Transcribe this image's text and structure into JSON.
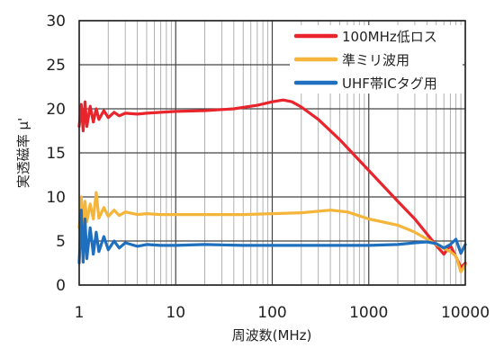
{
  "chart_data": {
    "type": "line",
    "title": "",
    "xlabel": "周波数(MHz)",
    "ylabel": "実透磁率 μ'",
    "xscale": "log",
    "xlim": [
      1,
      10000
    ],
    "ylim": [
      0,
      30
    ],
    "x_ticks": [
      "1",
      "10",
      "100",
      "1000",
      "10000"
    ],
    "y_ticks": [
      "0",
      "5",
      "10",
      "15",
      "20",
      "25",
      "30"
    ],
    "grid": true,
    "legend_position": "top-right",
    "series": [
      {
        "name": "100MHz低ロス",
        "color": "#e8242c",
        "points": [
          [
            1,
            18
          ],
          [
            1.05,
            20.5
          ],
          [
            1.1,
            17.5
          ],
          [
            1.15,
            20.8
          ],
          [
            1.2,
            18
          ],
          [
            1.3,
            20.3
          ],
          [
            1.4,
            18.5
          ],
          [
            1.5,
            20
          ],
          [
            1.6,
            18.8
          ],
          [
            1.8,
            19.8
          ],
          [
            2,
            19
          ],
          [
            2.3,
            19.6
          ],
          [
            2.6,
            19.2
          ],
          [
            3,
            19.5
          ],
          [
            4,
            19.4
          ],
          [
            5,
            19.5
          ],
          [
            7,
            19.6
          ],
          [
            10,
            19.7
          ],
          [
            20,
            19.8
          ],
          [
            40,
            20
          ],
          [
            70,
            20.4
          ],
          [
            100,
            20.8
          ],
          [
            130,
            21
          ],
          [
            160,
            20.8
          ],
          [
            200,
            20.2
          ],
          [
            300,
            18.8
          ],
          [
            500,
            16.5
          ],
          [
            1000,
            13
          ],
          [
            2000,
            9.5
          ],
          [
            3000,
            7.5
          ],
          [
            5000,
            4.5
          ],
          [
            6000,
            3.5
          ],
          [
            7000,
            4.5
          ],
          [
            8000,
            3.2
          ],
          [
            9000,
            2
          ],
          [
            10000,
            2.5
          ]
        ]
      },
      {
        "name": "準ミリ波用",
        "color": "#f5b53a",
        "points": [
          [
            1,
            6.5
          ],
          [
            1.05,
            10
          ],
          [
            1.1,
            6.8
          ],
          [
            1.15,
            9.5
          ],
          [
            1.2,
            7.2
          ],
          [
            1.3,
            9.2
          ],
          [
            1.4,
            7.5
          ],
          [
            1.5,
            10.5
          ],
          [
            1.6,
            7.6
          ],
          [
            1.8,
            8.8
          ],
          [
            2,
            7.8
          ],
          [
            2.3,
            8.5
          ],
          [
            2.6,
            7.9
          ],
          [
            3,
            8.3
          ],
          [
            4,
            8
          ],
          [
            5,
            8.1
          ],
          [
            7,
            8
          ],
          [
            10,
            8
          ],
          [
            20,
            8
          ],
          [
            50,
            8
          ],
          [
            100,
            8.1
          ],
          [
            200,
            8.2
          ],
          [
            400,
            8.5
          ],
          [
            600,
            8.3
          ],
          [
            1000,
            7.5
          ],
          [
            2000,
            6.8
          ],
          [
            3000,
            6
          ],
          [
            5000,
            4.6
          ],
          [
            7000,
            3.8
          ],
          [
            8000,
            3.3
          ],
          [
            9000,
            1.5
          ],
          [
            10000,
            2.3
          ]
        ]
      },
      {
        "name": "UHF帯ICタグ用",
        "color": "#1f6fbf",
        "points": [
          [
            1,
            2.5
          ],
          [
            1.05,
            8.5
          ],
          [
            1.1,
            2.6
          ],
          [
            1.15,
            7.5
          ],
          [
            1.2,
            3
          ],
          [
            1.3,
            6.5
          ],
          [
            1.4,
            3.5
          ],
          [
            1.5,
            6
          ],
          [
            1.6,
            3.8
          ],
          [
            1.8,
            5.5
          ],
          [
            2,
            4
          ],
          [
            2.3,
            5
          ],
          [
            2.6,
            4.2
          ],
          [
            3,
            4.8
          ],
          [
            4,
            4.4
          ],
          [
            5,
            4.6
          ],
          [
            7,
            4.5
          ],
          [
            10,
            4.5
          ],
          [
            20,
            4.6
          ],
          [
            50,
            4.5
          ],
          [
            100,
            4.5
          ],
          [
            200,
            4.5
          ],
          [
            500,
            4.5
          ],
          [
            1000,
            4.5
          ],
          [
            2000,
            4.6
          ],
          [
            3000,
            4.8
          ],
          [
            4000,
            4.9
          ],
          [
            5000,
            4.7
          ],
          [
            6000,
            4.2
          ],
          [
            7000,
            4.6
          ],
          [
            8000,
            5.2
          ],
          [
            9000,
            3.6
          ],
          [
            10000,
            4.6
          ]
        ]
      }
    ]
  }
}
